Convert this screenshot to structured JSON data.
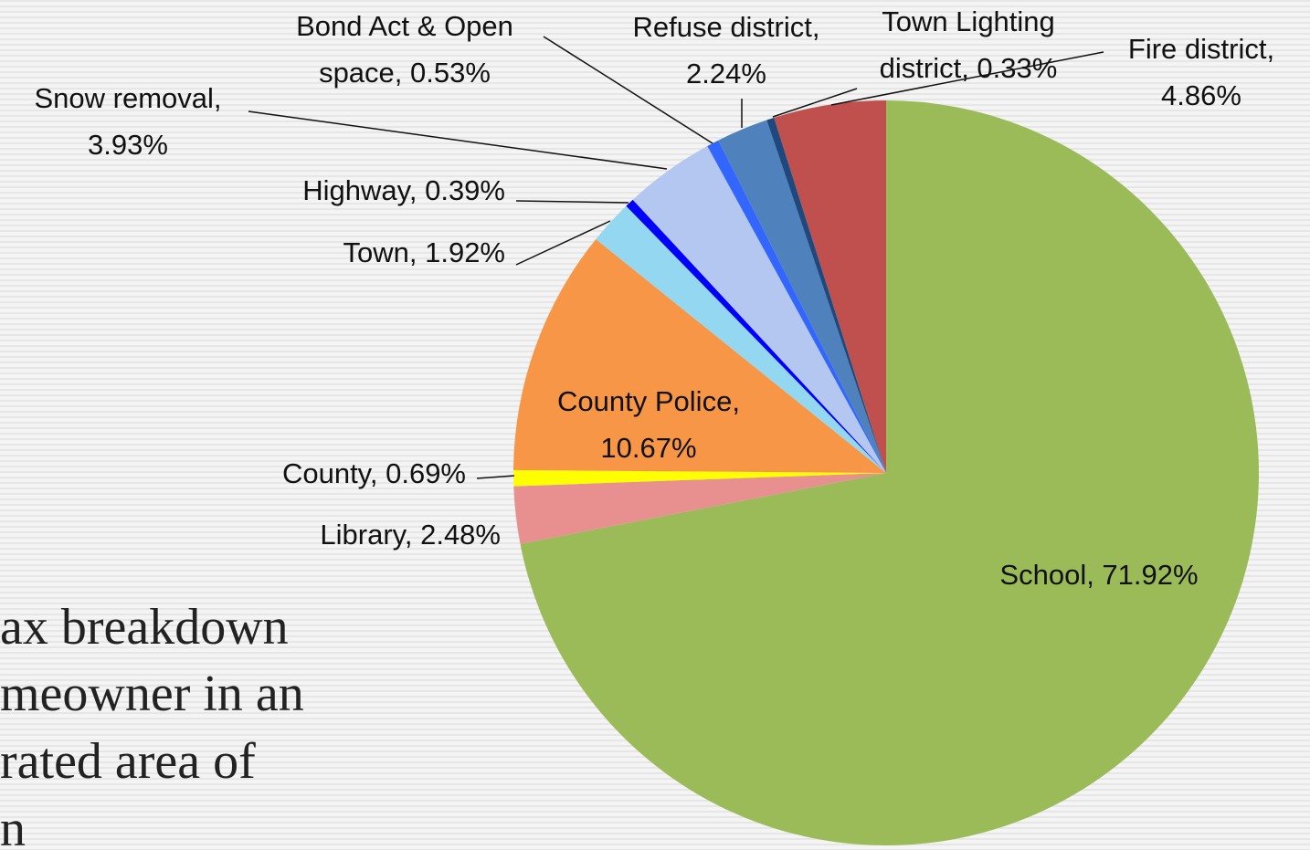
{
  "slide_text": [
    "ax breakdown",
    "meowner in an",
    "rated area of",
    "n"
  ],
  "chart_data": {
    "type": "pie",
    "values": [
      71.92,
      2.48,
      0.69,
      10.67,
      1.92,
      0.39,
      3.93,
      0.53,
      2.24,
      0.33,
      4.86
    ],
    "value_labels": [
      [
        "School, 71.92%"
      ],
      [
        "Library, 2.48%"
      ],
      [
        "County, 0.69%"
      ],
      [
        "County Police,",
        "10.67%"
      ],
      [
        "Town, 1.92%"
      ],
      [
        "Highway, 0.39%"
      ],
      [
        "Snow removal,",
        "3.93%"
      ],
      [
        "Bond Act & Open",
        "space, 0.53%"
      ],
      [
        "Refuse district,",
        "2.24%"
      ],
      [
        "Town Lighting",
        "district, 0.33%"
      ],
      [
        "Fire district,",
        "4.86%"
      ]
    ],
    "colors": [
      "#9bbb59",
      "#e8908f",
      "#ffff00",
      "#f79646",
      "#93d8f0",
      "#0000ff",
      "#b4c7f0",
      "#3366ff",
      "#4f81bd",
      "#1f497d",
      "#c0504d"
    ]
  }
}
